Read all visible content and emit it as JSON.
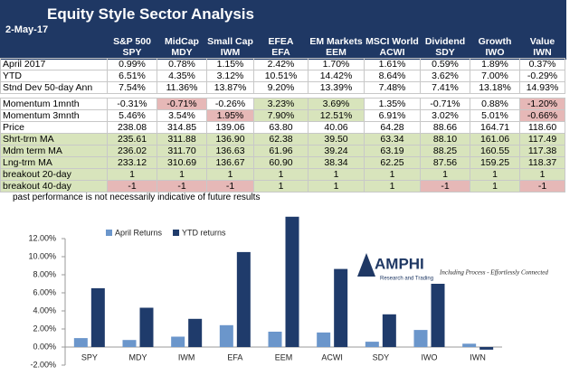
{
  "header": {
    "title": "Equity Style Sector Analysis",
    "date": "2-May-17"
  },
  "table": {
    "columns": [
      {
        "name": "S&P 500",
        "ticker": "SPY"
      },
      {
        "name": "MidCap",
        "ticker": "MDY"
      },
      {
        "name": "Small Cap",
        "ticker": "IWM"
      },
      {
        "name": "EFEA",
        "ticker": "EFA"
      },
      {
        "name": "EM Markets",
        "ticker": "EEM"
      },
      {
        "name": "MSCI World",
        "ticker": "ACWI"
      },
      {
        "name": "Dividend",
        "ticker": "SDY"
      },
      {
        "name": "Growth",
        "ticker": "IWO"
      },
      {
        "name": "Value",
        "ticker": "IWN"
      }
    ],
    "rows": [
      {
        "label": "April 2017",
        "cells": [
          "0.99%",
          "0.78%",
          "1.15%",
          "2.42%",
          "1.70%",
          "1.61%",
          "0.59%",
          "1.89%",
          "0.37%"
        ]
      },
      {
        "label": "YTD",
        "cells": [
          "6.51%",
          "4.35%",
          "3.12%",
          "10.51%",
          "14.42%",
          "8.64%",
          "3.62%",
          "7.00%",
          "-0.29%"
        ]
      },
      {
        "label": "Stnd Dev 50-day Ann",
        "cells": [
          "7.54%",
          "11.36%",
          "13.87%",
          "9.20%",
          "13.39%",
          "7.48%",
          "7.41%",
          "13.18%",
          "14.93%"
        ]
      },
      {
        "label": "Momentum 1mnth",
        "cells": [
          "-0.31%",
          "-0.71%",
          "-0.26%",
          "3.23%",
          "3.69%",
          "1.35%",
          "-0.71%",
          "0.88%",
          "-1.20%"
        ]
      },
      {
        "label": "Momentum 3mnth",
        "cells": [
          "5.46%",
          "3.54%",
          "1.95%",
          "7.90%",
          "12.51%",
          "6.91%",
          "3.02%",
          "5.01%",
          "-0.66%"
        ]
      },
      {
        "label": "Price",
        "cells": [
          "238.08",
          "314.85",
          "139.06",
          "63.80",
          "40.06",
          "64.28",
          "88.66",
          "164.71",
          "118.60"
        ]
      },
      {
        "label": "Shrt-trm MA",
        "cells": [
          "235.61",
          "311.88",
          "136.90",
          "62.38",
          "39.50",
          "63.34",
          "88.10",
          "161.06",
          "117.49"
        ]
      },
      {
        "label": "Mdm term MA",
        "cells": [
          "236.02",
          "311.70",
          "136.63",
          "61.96",
          "39.24",
          "63.19",
          "88.25",
          "160.55",
          "117.38"
        ]
      },
      {
        "label": "Lng-trm MA",
        "cells": [
          "233.12",
          "310.69",
          "136.67",
          "60.90",
          "38.34",
          "62.25",
          "87.56",
          "159.25",
          "118.37"
        ]
      },
      {
        "label": "breakout 20-day",
        "cells": [
          "1",
          "1",
          "1",
          "1",
          "1",
          "1",
          "1",
          "1",
          "1"
        ]
      },
      {
        "label": "breakout 40-day",
        "cells": [
          "-1",
          "-1",
          "-1",
          "1",
          "1",
          "1",
          "-1",
          "1",
          "-1"
        ]
      }
    ]
  },
  "note": "past performance is not necessarily indicative of future results",
  "logo": {
    "name": "AMPHI",
    "subtitle": "Research and Trading",
    "tagline": "Including Process - Effortlessly Connected"
  },
  "chart_data": {
    "type": "bar",
    "categories": [
      "SPY",
      "MDY",
      "IWM",
      "EFA",
      "EEM",
      "ACWI",
      "SDY",
      "IWO",
      "IWN"
    ],
    "series": [
      {
        "name": "April Returns",
        "color": "#6b96cb",
        "values": [
          0.99,
          0.78,
          1.15,
          2.42,
          1.7,
          1.61,
          0.59,
          1.89,
          0.37
        ]
      },
      {
        "name": "YTD returns",
        "color": "#1f3b6b",
        "values": [
          6.51,
          4.35,
          3.12,
          10.51,
          14.42,
          8.64,
          3.62,
          7.0,
          -0.29
        ]
      }
    ],
    "ylim": [
      -2,
      14.5
    ],
    "yticks": [
      {
        "value": -2,
        "label": "-2.00%"
      },
      {
        "value": 0,
        "label": "0.00%"
      },
      {
        "value": 2,
        "label": "2.00%"
      },
      {
        "value": 4,
        "label": "4.00%"
      },
      {
        "value": 6,
        "label": "6.00%"
      },
      {
        "value": 8,
        "label": "8.00%"
      },
      {
        "value": 10,
        "label": "10.00%"
      },
      {
        "value": 12,
        "label": "12.00%"
      }
    ],
    "legend": "top-left"
  }
}
